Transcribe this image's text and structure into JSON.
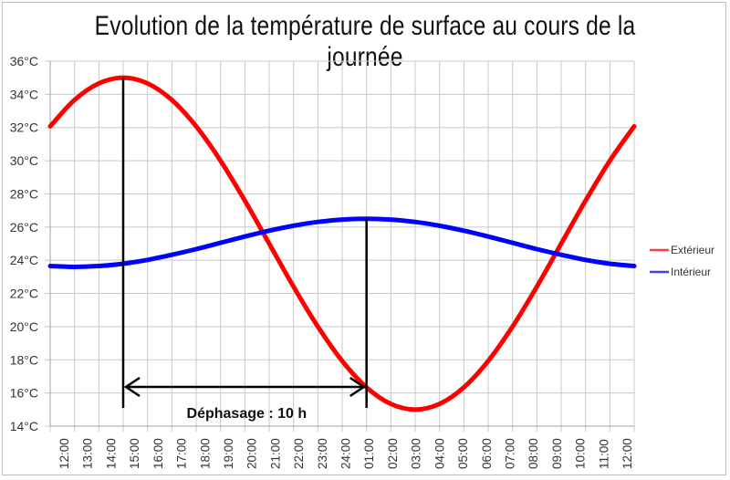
{
  "chart_data": {
    "type": "line",
    "title": "Evolution de la température de surface au cours de la journée",
    "xlabel": "",
    "ylabel": "",
    "categories": [
      "12:00",
      "13:00",
      "14:00",
      "15:00",
      "16:00",
      "17:00",
      "18:00",
      "19:00",
      "20:00",
      "21:00",
      "22:00",
      "23:00",
      "24:00",
      "01:00",
      "02:00",
      "03:00",
      "04:00",
      "05:00",
      "06:00",
      "07:00",
      "08:00",
      "09:00",
      "10:00",
      "11:00",
      "12:00"
    ],
    "ylim": [
      14,
      36
    ],
    "yticks": [
      14,
      16,
      18,
      20,
      22,
      24,
      26,
      28,
      30,
      32,
      34,
      36
    ],
    "ytick_suffix": "°C",
    "grid": true,
    "legend_position": "right",
    "series": [
      {
        "name": "Extérieur",
        "color": "#ff0000",
        "values": [
          32.07,
          33.66,
          34.66,
          35,
          34.66,
          33.66,
          32.07,
          30,
          27.59,
          25,
          22.41,
          20,
          17.93,
          16.34,
          15.34,
          15,
          15.34,
          16.34,
          17.93,
          20,
          22.41,
          25,
          27.59,
          30,
          32.07
        ]
      },
      {
        "name": "Intérieur",
        "color": "#0000ff",
        "values": [
          23.65,
          23.6,
          23.65,
          23.79,
          24.02,
          24.33,
          24.67,
          25.05,
          25.43,
          25.78,
          26.08,
          26.31,
          26.45,
          26.5,
          26.45,
          26.31,
          26.08,
          25.78,
          25.43,
          25.05,
          24.67,
          24.33,
          24.02,
          23.79,
          23.65
        ]
      }
    ],
    "annotation": {
      "text": "Déphasage : 10 h",
      "from_category_index": 3,
      "to_category_index": 13
    }
  }
}
